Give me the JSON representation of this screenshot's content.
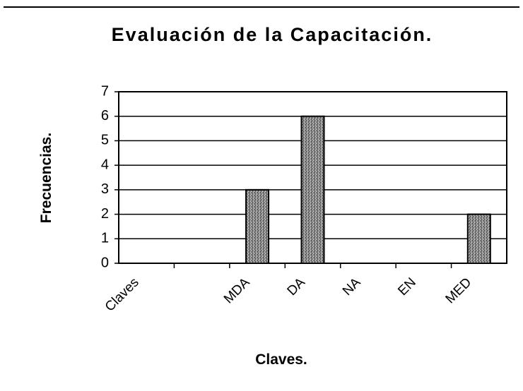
{
  "chart_data": {
    "type": "bar",
    "title": "Evaluación de la Capacitación.",
    "x_label": "Claves.",
    "y_label": "Frecuencias.",
    "categories": [
      "Claves",
      null,
      "MDA",
      "DA",
      "NA",
      "EN",
      "MED"
    ],
    "values": [
      null,
      null,
      3,
      6,
      0,
      0,
      2
    ],
    "color": "#555555",
    "ylim": [
      0,
      7
    ],
    "yticks": [
      0,
      1,
      2,
      3,
      4,
      5,
      6,
      7
    ],
    "grid": true
  }
}
